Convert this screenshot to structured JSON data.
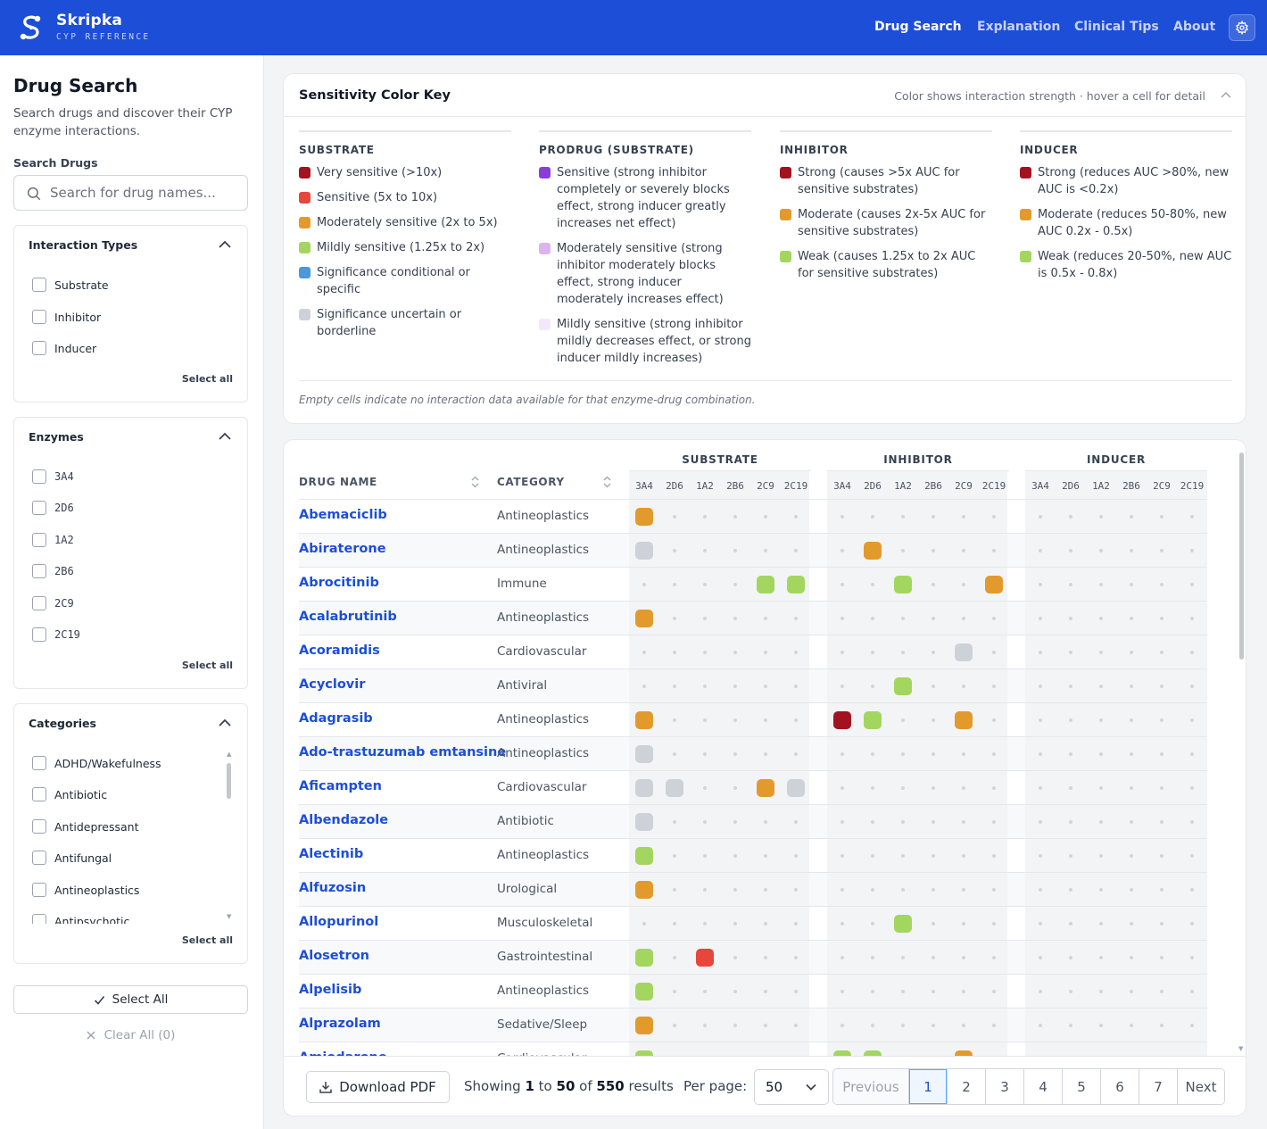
{
  "colors": {
    "very_sensitive": "#a3121f",
    "sensitive": "#e8453c",
    "moderate": "#e39a2d",
    "mild": "#a3d65f",
    "conditional": "#4a97dc",
    "uncertain": "#cdd2d9",
    "prodrug_sensitive": "#8b3ddb",
    "prodrug_moderate": "#d9b5f0",
    "prodrug_mild": "#f3e8fb",
    "brand": "#1d4ed8"
  },
  "app": {
    "name": "Skripka",
    "subtitle": "CYP REFERENCE",
    "logo_icon": "skripka-logo-icon",
    "settings_icon": "gear-icon"
  },
  "nav": {
    "items": [
      "Drug Search",
      "Explanation",
      "Clinical Tips",
      "About"
    ],
    "active": "Drug Search"
  },
  "sidebar": {
    "title": "Drug Search",
    "description": "Search drugs and discover their CYP enzyme interactions.",
    "search_label": "Search Drugs",
    "search_placeholder": "Search for drug names...",
    "search_value": "",
    "interaction_types": {
      "title": "Interaction Types",
      "options": [
        "Substrate",
        "Inhibitor",
        "Inducer"
      ],
      "select_all": "Select all"
    },
    "enzymes": {
      "title": "Enzymes",
      "options": [
        "3A4",
        "2D6",
        "1A2",
        "2B6",
        "2C9",
        "2C19"
      ],
      "select_all": "Select all"
    },
    "categories": {
      "title": "Categories",
      "options": [
        "ADHD/Wakefulness",
        "Antibiotic",
        "Antidepressant",
        "Antifungal",
        "Antineoplastics",
        "Antipsychotic"
      ],
      "select_all": "Select all"
    },
    "select_all_button": "Select All",
    "clear_all_button": "Clear All (0)"
  },
  "legend": {
    "title": "Sensitivity Color Key",
    "hint": "Color shows interaction strength · hover a cell for detail",
    "footnote": "Empty cells indicate no interaction data available for that enzyme-drug combination.",
    "columns": [
      {
        "title": "SUBSTRATE",
        "items": [
          {
            "color": "very_sensitive",
            "label": "Very sensitive (>10x)"
          },
          {
            "color": "sensitive",
            "label": "Sensitive (5x to 10x)"
          },
          {
            "color": "moderate",
            "label": "Moderately sensitive (2x to 5x)"
          },
          {
            "color": "mild",
            "label": "Mildly sensitive (1.25x to 2x)"
          },
          {
            "color": "conditional",
            "label": "Significance conditional or specific"
          },
          {
            "color": "uncertain",
            "label": "Significance uncertain or borderline"
          }
        ]
      },
      {
        "title": "PRODRUG (SUBSTRATE)",
        "items": [
          {
            "color": "prodrug_sensitive",
            "label": "Sensitive (strong inhibitor completely or severely blocks effect, strong inducer greatly increases net effect)"
          },
          {
            "color": "prodrug_moderate",
            "label": "Moderately sensitive (strong inhibitor moderately blocks effect, strong inducer moderately increases effect)"
          },
          {
            "color": "prodrug_mild",
            "label": "Mildly sensitive (strong inhibitor mildly decreases effect, or strong inducer mildly increases)"
          }
        ]
      },
      {
        "title": "INHIBITOR",
        "items": [
          {
            "color": "very_sensitive",
            "label": "Strong (causes >5x AUC for sensitive substrates)"
          },
          {
            "color": "moderate",
            "label": "Moderate (causes 2x-5x AUC for sensitive substrates)"
          },
          {
            "color": "mild",
            "label": "Weak (causes 1.25x to 2x AUC for sensitive substrates)"
          }
        ]
      },
      {
        "title": "INDUCER",
        "items": [
          {
            "color": "very_sensitive",
            "label": "Strong (reduces AUC >80%, new AUC is <0.2x)"
          },
          {
            "color": "moderate",
            "label": "Moderate (reduces 50-80%, new AUC 0.2x - 0.5x)"
          },
          {
            "color": "mild",
            "label": "Weak (reduces 20-50%, new AUC is 0.5x - 0.8x)"
          }
        ]
      }
    ]
  },
  "table": {
    "headers": {
      "drug": "DRUG NAME",
      "category": "CATEGORY"
    },
    "groups": [
      "SUBSTRATE",
      "INHIBITOR",
      "INDUCER"
    ],
    "enzymes": [
      "3A4",
      "2D6",
      "1A2",
      "2B6",
      "2C9",
      "2C19"
    ],
    "rows": [
      {
        "name": "Abemaciclib",
        "category": "Antineoplastics",
        "substrate": [
          "moderate",
          null,
          null,
          null,
          null,
          null
        ],
        "inhibitor": [
          null,
          null,
          null,
          null,
          null,
          null
        ],
        "inducer": [
          null,
          null,
          null,
          null,
          null,
          null
        ]
      },
      {
        "name": "Abiraterone",
        "category": "Antineoplastics",
        "substrate": [
          "uncertain",
          null,
          null,
          null,
          null,
          null
        ],
        "inhibitor": [
          null,
          "moderate",
          null,
          null,
          null,
          null
        ],
        "inducer": [
          null,
          null,
          null,
          null,
          null,
          null
        ]
      },
      {
        "name": "Abrocitinib",
        "category": "Immune",
        "substrate": [
          null,
          null,
          null,
          null,
          "mild",
          "mild"
        ],
        "inhibitor": [
          null,
          null,
          "mild",
          null,
          null,
          "moderate"
        ],
        "inducer": [
          null,
          null,
          null,
          null,
          null,
          null
        ]
      },
      {
        "name": "Acalabrutinib",
        "category": "Antineoplastics",
        "substrate": [
          "moderate",
          null,
          null,
          null,
          null,
          null
        ],
        "inhibitor": [
          null,
          null,
          null,
          null,
          null,
          null
        ],
        "inducer": [
          null,
          null,
          null,
          null,
          null,
          null
        ]
      },
      {
        "name": "Acoramidis",
        "category": "Cardiovascular",
        "substrate": [
          null,
          null,
          null,
          null,
          null,
          null
        ],
        "inhibitor": [
          null,
          null,
          null,
          null,
          "uncertain",
          null
        ],
        "inducer": [
          null,
          null,
          null,
          null,
          null,
          null
        ]
      },
      {
        "name": "Acyclovir",
        "category": "Antiviral",
        "substrate": [
          null,
          null,
          null,
          null,
          null,
          null
        ],
        "inhibitor": [
          null,
          null,
          "mild",
          null,
          null,
          null
        ],
        "inducer": [
          null,
          null,
          null,
          null,
          null,
          null
        ]
      },
      {
        "name": "Adagrasib",
        "category": "Antineoplastics",
        "substrate": [
          "moderate",
          null,
          null,
          null,
          null,
          null
        ],
        "inhibitor": [
          "very_sensitive",
          "mild",
          null,
          null,
          "moderate",
          null
        ],
        "inducer": [
          null,
          null,
          null,
          null,
          null,
          null
        ]
      },
      {
        "name": "Ado-trastuzumab emtansine",
        "category": "Antineoplastics",
        "substrate": [
          "uncertain",
          null,
          null,
          null,
          null,
          null
        ],
        "inhibitor": [
          null,
          null,
          null,
          null,
          null,
          null
        ],
        "inducer": [
          null,
          null,
          null,
          null,
          null,
          null
        ]
      },
      {
        "name": "Aficampten",
        "category": "Cardiovascular",
        "substrate": [
          "uncertain",
          "uncertain",
          null,
          null,
          "moderate",
          "uncertain"
        ],
        "inhibitor": [
          null,
          null,
          null,
          null,
          null,
          null
        ],
        "inducer": [
          null,
          null,
          null,
          null,
          null,
          null
        ]
      },
      {
        "name": "Albendazole",
        "category": "Antibiotic",
        "substrate": [
          "uncertain",
          null,
          null,
          null,
          null,
          null
        ],
        "inhibitor": [
          null,
          null,
          null,
          null,
          null,
          null
        ],
        "inducer": [
          null,
          null,
          null,
          null,
          null,
          null
        ]
      },
      {
        "name": "Alectinib",
        "category": "Antineoplastics",
        "substrate": [
          "mild",
          null,
          null,
          null,
          null,
          null
        ],
        "inhibitor": [
          null,
          null,
          null,
          null,
          null,
          null
        ],
        "inducer": [
          null,
          null,
          null,
          null,
          null,
          null
        ]
      },
      {
        "name": "Alfuzosin",
        "category": "Urological",
        "substrate": [
          "moderate",
          null,
          null,
          null,
          null,
          null
        ],
        "inhibitor": [
          null,
          null,
          null,
          null,
          null,
          null
        ],
        "inducer": [
          null,
          null,
          null,
          null,
          null,
          null
        ]
      },
      {
        "name": "Allopurinol",
        "category": "Musculoskeletal",
        "substrate": [
          null,
          null,
          null,
          null,
          null,
          null
        ],
        "inhibitor": [
          null,
          null,
          "mild",
          null,
          null,
          null
        ],
        "inducer": [
          null,
          null,
          null,
          null,
          null,
          null
        ]
      },
      {
        "name": "Alosetron",
        "category": "Gastrointestinal",
        "substrate": [
          "mild",
          null,
          "sensitive",
          null,
          null,
          null
        ],
        "inhibitor": [
          null,
          null,
          null,
          null,
          null,
          null
        ],
        "inducer": [
          null,
          null,
          null,
          null,
          null,
          null
        ]
      },
      {
        "name": "Alpelisib",
        "category": "Antineoplastics",
        "substrate": [
          "mild",
          null,
          null,
          null,
          null,
          null
        ],
        "inhibitor": [
          null,
          null,
          null,
          null,
          null,
          null
        ],
        "inducer": [
          null,
          null,
          null,
          null,
          null,
          null
        ]
      },
      {
        "name": "Alprazolam",
        "category": "Sedative/Sleep",
        "substrate": [
          "moderate",
          null,
          null,
          null,
          null,
          null
        ],
        "inhibitor": [
          null,
          null,
          null,
          null,
          null,
          null
        ],
        "inducer": [
          null,
          null,
          null,
          null,
          null,
          null
        ]
      },
      {
        "name": "Amiodarone",
        "category": "Cardiovascular",
        "substrate": [
          "mild",
          null,
          null,
          null,
          null,
          null
        ],
        "inhibitor": [
          "mild",
          "mild",
          null,
          null,
          "moderate",
          null
        ],
        "inducer": [
          null,
          null,
          null,
          null,
          null,
          null
        ]
      }
    ]
  },
  "footer": {
    "download_label": "Download PDF",
    "showing_prefix": "Showing",
    "range_start": "1",
    "range_to": "to",
    "range_end": "50",
    "range_of": "of",
    "total": "550",
    "results_word": "results",
    "per_page_label": "Per page:",
    "per_page_value": "50",
    "pagination": {
      "previous": "Previous",
      "pages": [
        "1",
        "2",
        "3",
        "4",
        "5",
        "6",
        "7"
      ],
      "current": "1",
      "next": "Next"
    }
  }
}
